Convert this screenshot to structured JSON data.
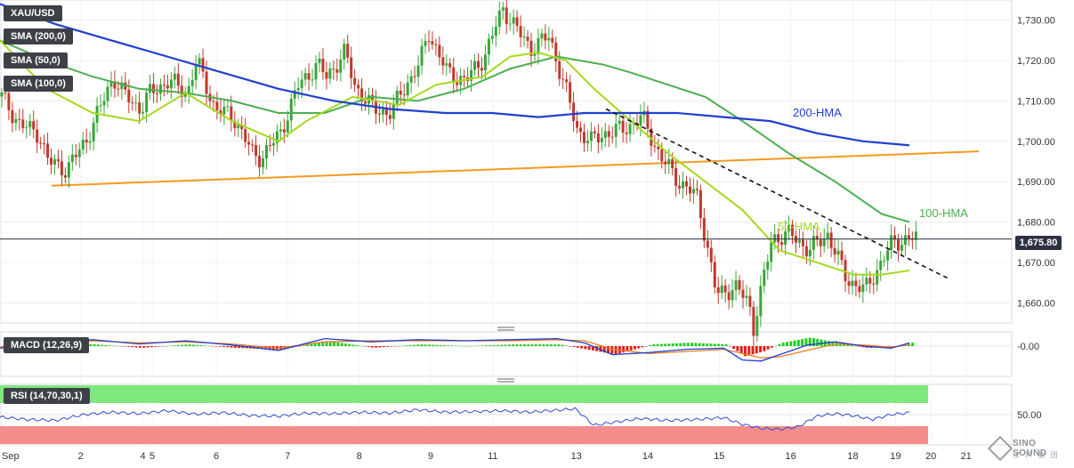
{
  "instrument": "XAU/USD",
  "indicators": {
    "sma200": "SMA (200,0)",
    "sma50": "SMA (50,0)",
    "sma100": "SMA (100,0)",
    "macd": "MACD (12,26,9)",
    "rsi": "RSI (14,70,30,1)"
  },
  "current_price": "1,675.80",
  "annotations": {
    "hma200": "200-HMA",
    "hma100": "100-HMA",
    "hma50": "50-HMA"
  },
  "colors": {
    "hma200": "#1f3fd1",
    "hma100": "#4caf50",
    "hma50": "#a6d81e",
    "support_line": "#f59a1f",
    "trend_line": "#111111",
    "bull_candle": "#3aa53a",
    "bear_candle": "#c0392b",
    "macd_line": "#1f3fd1",
    "signal_line": "#f07c1e",
    "rsi_line": "#2f4bd1",
    "rsi_overbought": "#7ee87e",
    "rsi_oversold": "#f58c8c"
  },
  "chart_data": {
    "type": "candlestick",
    "price_axis": {
      "ticks": [
        "1,730.00",
        "1,720.00",
        "1,710.00",
        "1,700.00",
        "1,690.00",
        "1,680.00",
        "1,670.00",
        "1,660.00"
      ],
      "tick_values": [
        1730,
        1720,
        1710,
        1700,
        1690,
        1680,
        1670,
        1660
      ],
      "ylim": [
        1655,
        1735
      ]
    },
    "date_axis": {
      "labels": [
        "Sep",
        "2",
        "4",
        "5",
        "6",
        "7",
        "8",
        "9",
        "11",
        "13",
        "14",
        "15",
        "16",
        "18",
        "19",
        "20",
        "21"
      ]
    },
    "hma200": {
      "x": [
        0,
        0.06,
        0.12,
        0.18,
        0.24,
        0.3,
        0.36,
        0.42,
        0.48,
        0.53,
        0.58,
        0.63,
        0.68,
        0.73,
        0.78,
        0.83,
        0.88,
        0.93,
        0.98
      ],
      "y": [
        1734,
        1729,
        1725,
        1721,
        1717,
        1713,
        1710,
        1708,
        1707,
        1707,
        1706,
        1707,
        1707,
        1707,
        1706,
        1705,
        1702,
        1700,
        1699
      ]
    },
    "hma100": {
      "x": [
        0,
        0.05,
        0.1,
        0.15,
        0.2,
        0.25,
        0.3,
        0.35,
        0.4,
        0.45,
        0.5,
        0.55,
        0.6,
        0.65,
        0.68,
        0.72,
        0.76,
        0.8,
        0.85,
        0.9,
        0.95,
        0.98
      ],
      "y": [
        1725,
        1720,
        1716,
        1713,
        1712,
        1710,
        1707,
        1707,
        1711,
        1710,
        1713,
        1718,
        1721,
        1719,
        1717,
        1714,
        1711,
        1705,
        1697,
        1690,
        1682,
        1680
      ]
    },
    "hma50": {
      "x": [
        0,
        0.05,
        0.1,
        0.15,
        0.2,
        0.25,
        0.3,
        0.33,
        0.38,
        0.43,
        0.47,
        0.52,
        0.55,
        0.58,
        0.61,
        0.64,
        0.68,
        0.72,
        0.76,
        0.8,
        0.84,
        0.88,
        0.92,
        0.95,
        0.98
      ],
      "y": [
        1725,
        1713,
        1707,
        1705,
        1712,
        1705,
        1700,
        1705,
        1711,
        1709,
        1714,
        1716,
        1721,
        1722,
        1720,
        1713,
        1705,
        1697,
        1690,
        1683,
        1673,
        1670,
        1667,
        1667,
        1668
      ]
    },
    "support_line": {
      "x": [
        0.048,
        1.0
      ],
      "y": [
        1689,
        1697.5
      ]
    },
    "trend_line": {
      "x": [
        0.63,
        0.98
      ],
      "y": [
        1708,
        1666
      ]
    },
    "candles_path": {
      "x": [
        0,
        0.02,
        0.04,
        0.05,
        0.07,
        0.09,
        0.1,
        0.12,
        0.13,
        0.15,
        0.16,
        0.18,
        0.2,
        0.21,
        0.23,
        0.25,
        0.27,
        0.28,
        0.3,
        0.32,
        0.34,
        0.35,
        0.37,
        0.38,
        0.4,
        0.42,
        0.43,
        0.45,
        0.46,
        0.48,
        0.5,
        0.52,
        0.54,
        0.56,
        0.57,
        0.59,
        0.61,
        0.62,
        0.635,
        0.65,
        0.67,
        0.69,
        0.71,
        0.73,
        0.75,
        0.77,
        0.79,
        0.805,
        0.81,
        0.83,
        0.85,
        0.87,
        0.89,
        0.91,
        0.93,
        0.95,
        0.96,
        0.98
      ],
      "y": [
        1711,
        1704,
        1702,
        1695,
        1693,
        1700,
        1705,
        1716,
        1712,
        1708,
        1712,
        1715,
        1712,
        1720,
        1708,
        1706,
        1697,
        1696,
        1702,
        1714,
        1719,
        1716,
        1722,
        1714,
        1708,
        1707,
        1712,
        1719,
        1727,
        1717,
        1715,
        1721,
        1733,
        1726,
        1723,
        1726,
        1711,
        1703,
        1700,
        1702,
        1703,
        1706,
        1696,
        1690,
        1686,
        1662,
        1664,
        1660,
        1654,
        1676,
        1677,
        1673,
        1677,
        1666,
        1663,
        1671,
        1675,
        1676
      ]
    },
    "macd": {
      "x": [
        0,
        0.05,
        0.1,
        0.15,
        0.2,
        0.25,
        0.3,
        0.35,
        0.4,
        0.45,
        0.5,
        0.55,
        0.6,
        0.63,
        0.66,
        0.7,
        0.74,
        0.78,
        0.8,
        0.82,
        0.84,
        0.87,
        0.9,
        0.93,
        0.96,
        0.98
      ],
      "y": [
        -0.2,
        0.4,
        0.6,
        0.2,
        0.5,
        0.1,
        -0.4,
        0.7,
        0.4,
        0.6,
        0.5,
        0.6,
        0.7,
        0.3,
        -0.8,
        -0.6,
        -0.3,
        -0.2,
        -1.3,
        -1.4,
        -0.8,
        0.1,
        0.4,
        0.0,
        -0.2,
        0.3
      ]
    },
    "macd_signal": {
      "x": [
        0,
        0.05,
        0.1,
        0.15,
        0.2,
        0.25,
        0.3,
        0.35,
        0.4,
        0.45,
        0.5,
        0.55,
        0.6,
        0.63,
        0.66,
        0.7,
        0.74,
        0.78,
        0.8,
        0.82,
        0.84,
        0.87,
        0.9,
        0.93,
        0.96,
        0.98
      ],
      "y": [
        -0.1,
        0.2,
        0.5,
        0.3,
        0.4,
        0.2,
        -0.2,
        0.4,
        0.5,
        0.5,
        0.5,
        0.5,
        0.6,
        0.5,
        -0.3,
        -0.7,
        -0.5,
        -0.3,
        -0.7,
        -1.1,
        -1.0,
        -0.4,
        0.2,
        0.1,
        -0.1,
        0.1
      ]
    },
    "rsi": {
      "ticks": [
        "50.00"
      ],
      "x": [
        0,
        0.03,
        0.06,
        0.09,
        0.12,
        0.15,
        0.18,
        0.21,
        0.24,
        0.27,
        0.3,
        0.33,
        0.36,
        0.39,
        0.42,
        0.45,
        0.48,
        0.51,
        0.54,
        0.57,
        0.6,
        0.62,
        0.64,
        0.66,
        0.69,
        0.72,
        0.75,
        0.78,
        0.8,
        0.82,
        0.84,
        0.86,
        0.88,
        0.9,
        0.92,
        0.94,
        0.96,
        0.98
      ],
      "y": [
        45,
        40,
        38,
        50,
        55,
        52,
        58,
        51,
        54,
        48,
        47,
        53,
        52,
        55,
        53,
        60,
        55,
        56,
        58,
        55,
        59,
        62,
        28,
        34,
        42,
        38,
        40,
        44,
        30,
        22,
        20,
        25,
        47,
        52,
        48,
        40,
        50,
        54
      ]
    }
  }
}
